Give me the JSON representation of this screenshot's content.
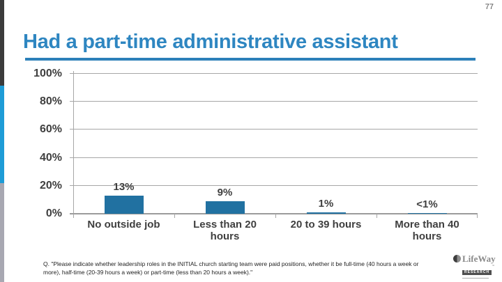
{
  "slide": {
    "page_number": "77",
    "title": "Had a part-time administrative assistant"
  },
  "chart_data": {
    "type": "bar",
    "title": "Had a part-time administrative assistant",
    "categories": [
      "No outside job",
      "Less than 20 hours",
      "20 to 39 hours",
      "More than 40 hours"
    ],
    "values": [
      13,
      9,
      1,
      0.5
    ],
    "value_labels": [
      "13%",
      "9%",
      "1%",
      "<1%"
    ],
    "xlabel": "",
    "ylabel": "",
    "ylim": [
      0,
      100
    ],
    "ytick_values": [
      0,
      20,
      40,
      60,
      80,
      100
    ],
    "ytick_labels": [
      "0%",
      "20%",
      "40%",
      "60%",
      "80%",
      "100%"
    ],
    "grid": true,
    "legend": false,
    "bar_color": "#2171A1"
  },
  "footnote": "Q. \"Please indicate whether leadership roles in the INITIAL church starting team were paid positions, whether it be full-time (40 hours a week or more), half-time (20-39 hours a week) or part-time (less than 20 hours a week).\"",
  "logo": {
    "brand": "LifeWay",
    "division": "RESEARCH",
    "trademark": "™"
  },
  "colors": {
    "title": "#2E86C1",
    "bar": "#2171A1",
    "gridline": "#A6A6A6",
    "axis_text": "#3F3F3F",
    "stripe_dark": "#3B3B3B",
    "stripe_cyan": "#1E9CD7",
    "stripe_gray": "#A8A8B2"
  }
}
